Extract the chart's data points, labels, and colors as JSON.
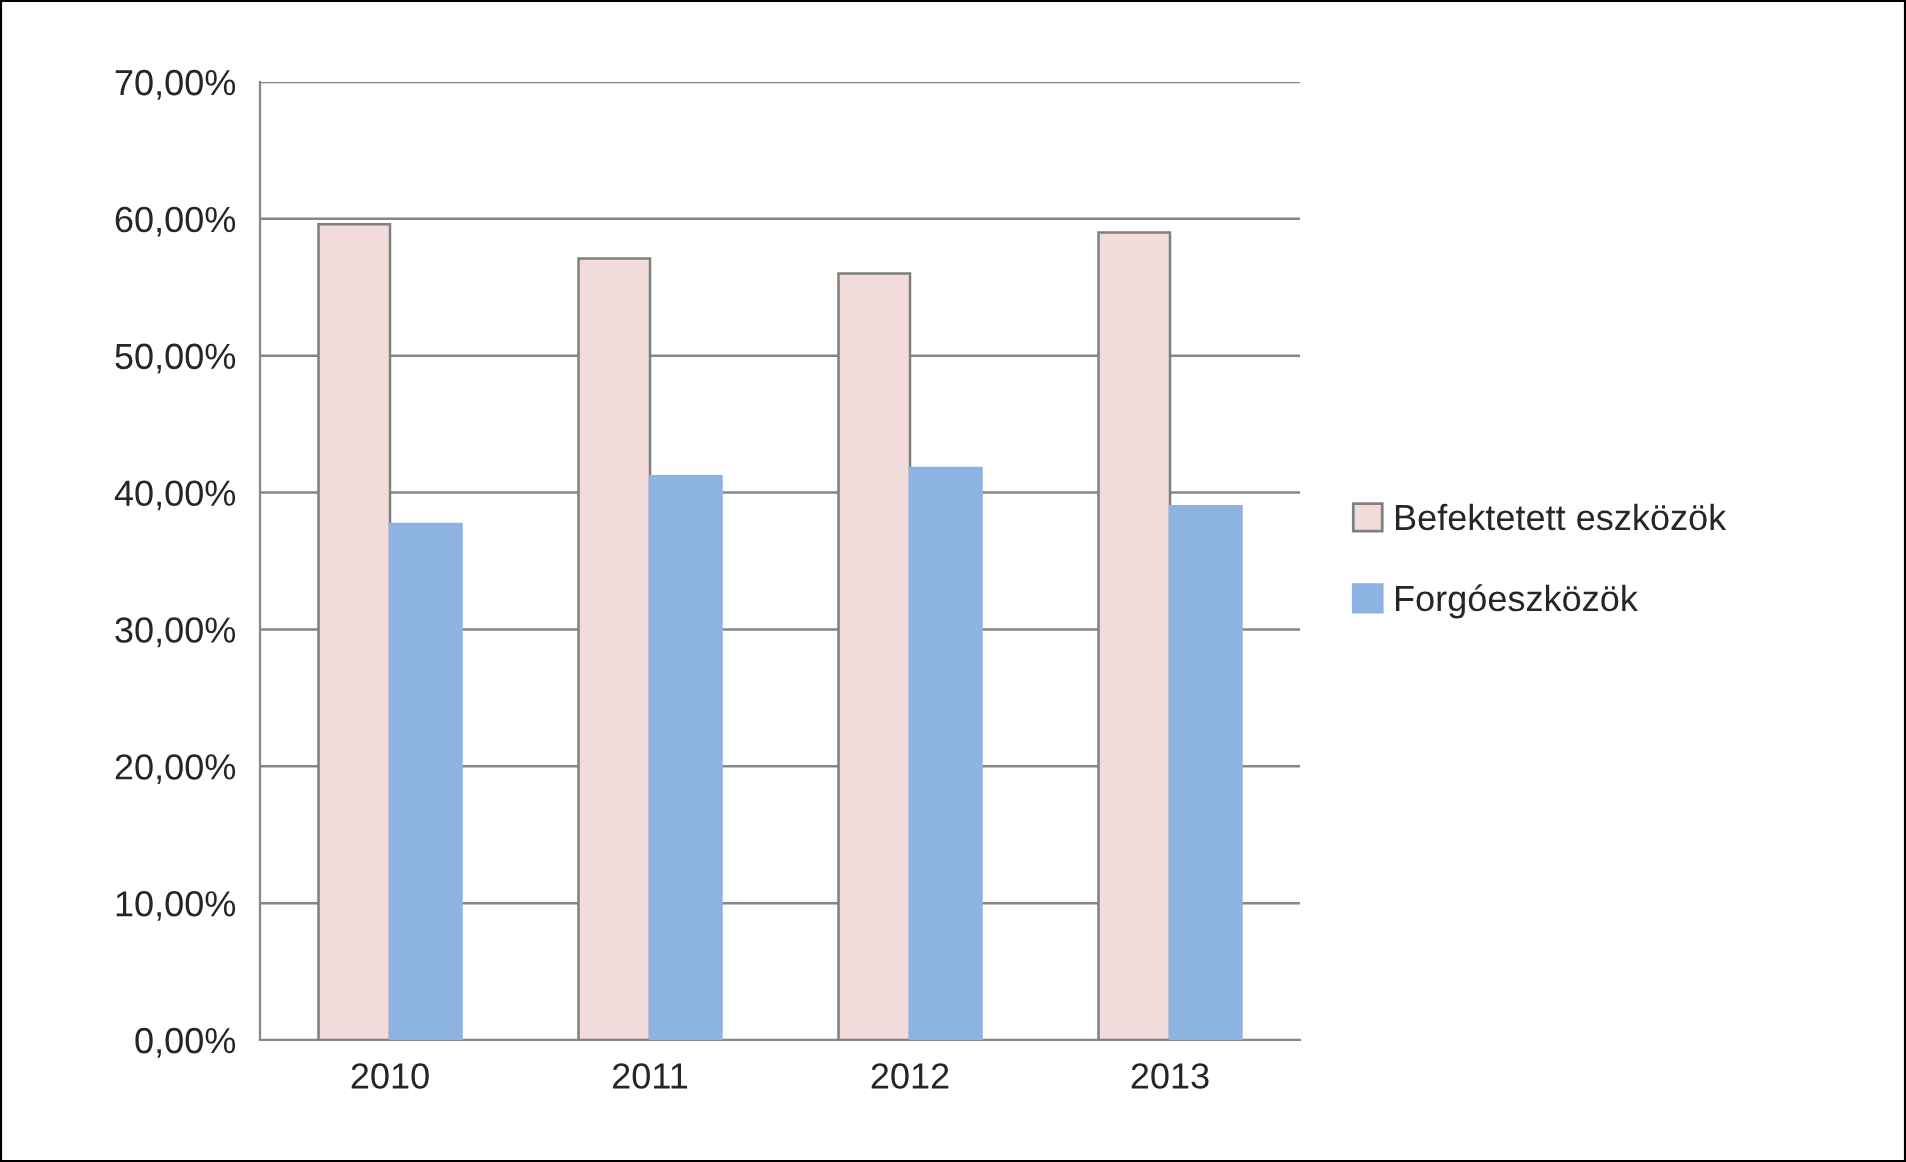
{
  "chart_data": {
    "type": "bar",
    "categories": [
      "2010",
      "2011",
      "2012",
      "2013"
    ],
    "series": [
      {
        "name": "Befektetett eszközök",
        "color": "#f2dcdb",
        "values": [
          59.6,
          57.1,
          56.0,
          59.0
        ]
      },
      {
        "name": "Forgóeszközök",
        "color": "#8db3e2",
        "values": [
          37.7,
          41.2,
          41.8,
          39.0
        ]
      }
    ],
    "ylim": [
      0,
      70
    ],
    "yticks": [
      {
        "value": 0,
        "label": "0,00%"
      },
      {
        "value": 10,
        "label": "10,00%"
      },
      {
        "value": 20,
        "label": "20,00%"
      },
      {
        "value": 30,
        "label": "30,00%"
      },
      {
        "value": 40,
        "label": "40,00%"
      },
      {
        "value": 50,
        "label": "50,00%"
      },
      {
        "value": 60,
        "label": "60,00%"
      },
      {
        "value": 70,
        "label": "70,00%"
      }
    ],
    "grid": "y",
    "legend": "right"
  }
}
